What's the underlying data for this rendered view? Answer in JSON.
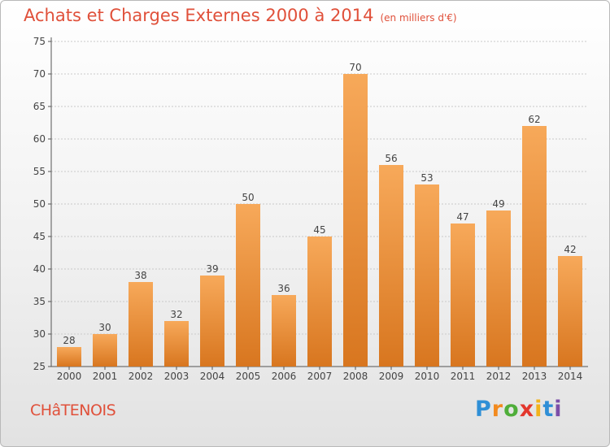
{
  "header": {
    "title": "Achats et Charges Externes 2000 à 2014",
    "unit": "(en milliers d'€)"
  },
  "footer": {
    "location": "CHâTENOIS",
    "logo": "Proxiti"
  },
  "colors": {
    "title": "#e0503a",
    "bar_light": "#f7a95a",
    "bar_dark": "#d8761f",
    "logo_letters": [
      "#2f8fd6",
      "#f28a1e",
      "#4fae3a",
      "#e3372d",
      "#f2b31c",
      "#2f8fd6",
      "#7c4ea8"
    ]
  },
  "chart_data": {
    "type": "bar",
    "title": "Achats et Charges Externes 2000 à 2014",
    "subtitle": "(en milliers d'€)",
    "categories": [
      "2000",
      "2001",
      "2002",
      "2003",
      "2004",
      "2005",
      "2006",
      "2007",
      "2008",
      "2009",
      "2010",
      "2011",
      "2012",
      "2013",
      "2014"
    ],
    "values": [
      28,
      30,
      38,
      32,
      39,
      50,
      36,
      45,
      70,
      56,
      53,
      47,
      49,
      62,
      42
    ],
    "ylim": [
      25,
      75
    ],
    "yticks": [
      25,
      30,
      35,
      40,
      45,
      50,
      55,
      60,
      65,
      70,
      75
    ],
    "grid": true,
    "data_labels": true
  }
}
